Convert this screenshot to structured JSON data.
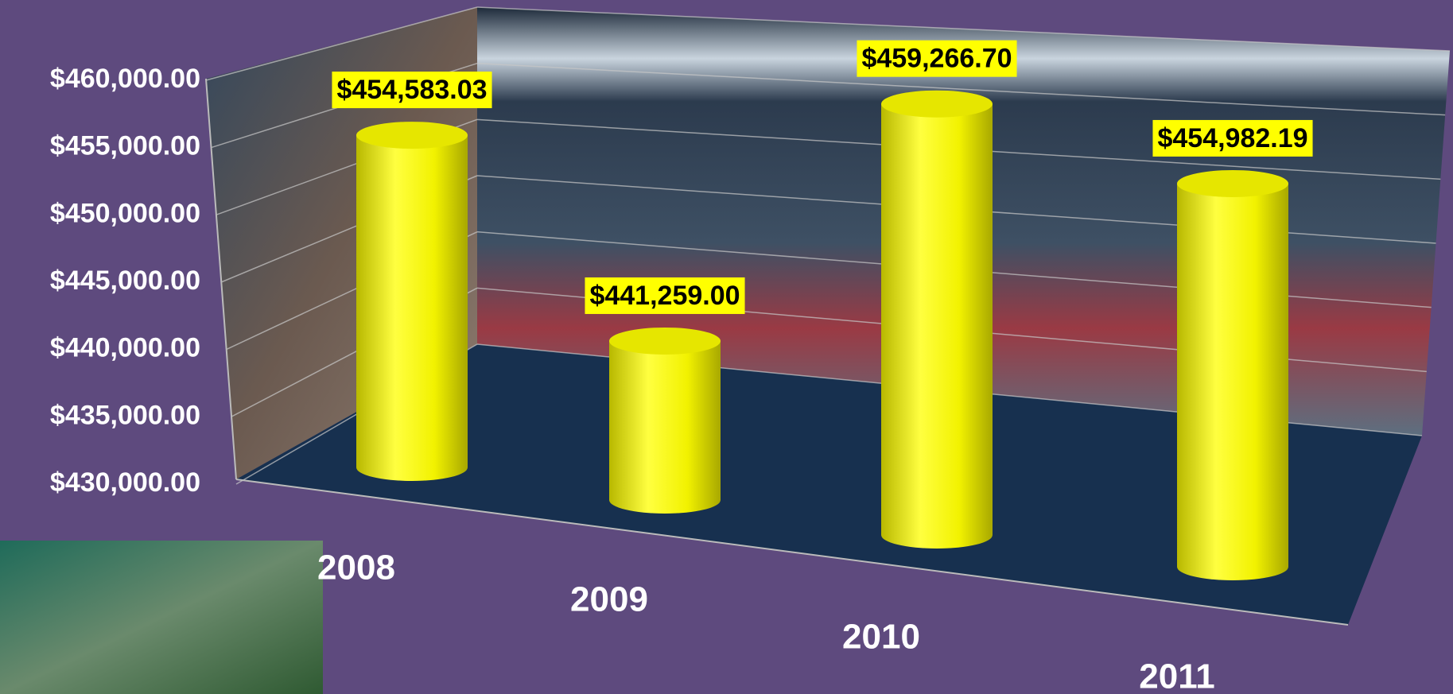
{
  "chart_data": {
    "type": "bar",
    "categories": [
      "2008",
      "2009",
      "2010",
      "2011"
    ],
    "values": [
      454583.03,
      441259.0,
      459266.7,
      454982.19
    ],
    "value_labels": [
      "$454,583.03",
      "$441,259.00",
      "$459,266.70",
      "$454,982.19"
    ],
    "color": "#ffff00",
    "ylim": [
      430000,
      460000
    ],
    "yticks": [
      {
        "value": 430000,
        "label": "$430,000.00"
      },
      {
        "value": 435000,
        "label": "$435,000.00"
      },
      {
        "value": 440000,
        "label": "$440,000.00"
      },
      {
        "value": 445000,
        "label": "$445,000.00"
      },
      {
        "value": 450000,
        "label": "$450,000.00"
      },
      {
        "value": 455000,
        "label": "$455,000.00"
      },
      {
        "value": 460000,
        "label": "$460,000.00"
      }
    ],
    "grid": true
  }
}
